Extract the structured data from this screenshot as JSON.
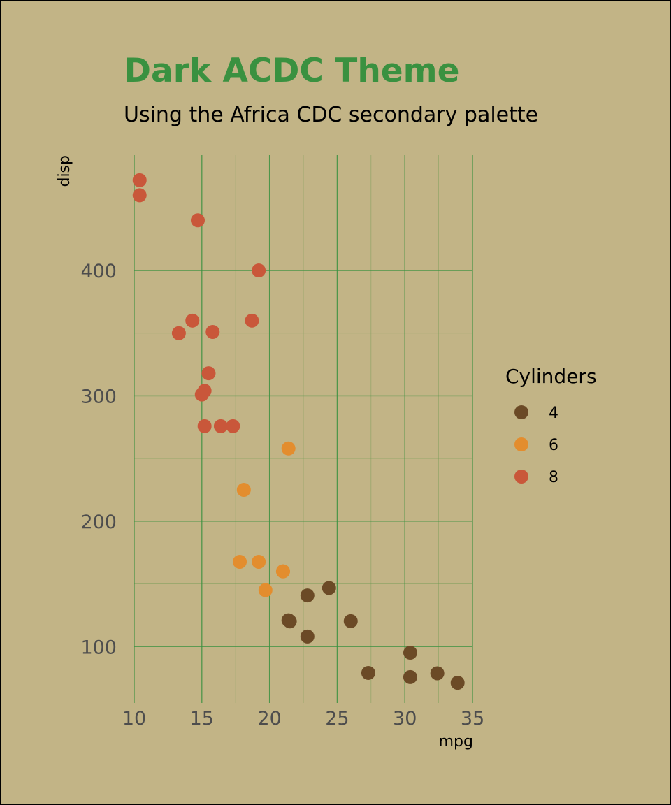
{
  "colors": {
    "background": "#c2b486",
    "title": "#3a9140",
    "grid_major": "#3a9140",
    "grid_minor": "#6b9a50",
    "tick_label": "#4d4d4d"
  },
  "chart_data": {
    "type": "scatter",
    "title": "Dark ACDC Theme",
    "subtitle": "Using the Africa CDC secondary palette",
    "xlabel": "mpg",
    "ylabel": "disp",
    "xlim": [
      10,
      35
    ],
    "ylim": [
      55,
      492
    ],
    "x_ticks": [
      10,
      15,
      20,
      25,
      30,
      35
    ],
    "y_ticks": [
      100,
      200,
      300,
      400
    ],
    "grid": true,
    "legend": {
      "title": "Cylinders",
      "position": "right",
      "entries": [
        {
          "label": "4",
          "color": "#6b4a26"
        },
        {
          "label": "6",
          "color": "#e38d2e"
        },
        {
          "label": "8",
          "color": "#c9573a"
        }
      ]
    },
    "series": [
      {
        "name": "4",
        "color": "#6b4a26",
        "points": [
          [
            22.8,
            108
          ],
          [
            24.4,
            146.7
          ],
          [
            22.8,
            140.8
          ],
          [
            32.4,
            78.7
          ],
          [
            30.4,
            75.7
          ],
          [
            33.9,
            71.1
          ],
          [
            21.5,
            120.1
          ],
          [
            27.3,
            79
          ],
          [
            26.0,
            120.3
          ],
          [
            30.4,
            95.1
          ],
          [
            21.4,
            121
          ]
        ]
      },
      {
        "name": "6",
        "color": "#e38d2e",
        "points": [
          [
            21.0,
            160
          ],
          [
            21.0,
            160
          ],
          [
            21.4,
            258
          ],
          [
            18.1,
            225
          ],
          [
            19.2,
            167.6
          ],
          [
            17.8,
            167.6
          ],
          [
            19.7,
            145
          ]
        ]
      },
      {
        "name": "8",
        "color": "#c9573a",
        "points": [
          [
            18.7,
            360
          ],
          [
            14.3,
            360
          ],
          [
            16.4,
            275.8
          ],
          [
            17.3,
            275.8
          ],
          [
            15.2,
            275.8
          ],
          [
            10.4,
            472
          ],
          [
            10.4,
            460
          ],
          [
            14.7,
            440
          ],
          [
            15.5,
            318
          ],
          [
            15.2,
            304
          ],
          [
            13.3,
            350
          ],
          [
            19.2,
            400
          ],
          [
            15.8,
            351
          ],
          [
            15.0,
            301
          ]
        ]
      }
    ]
  }
}
